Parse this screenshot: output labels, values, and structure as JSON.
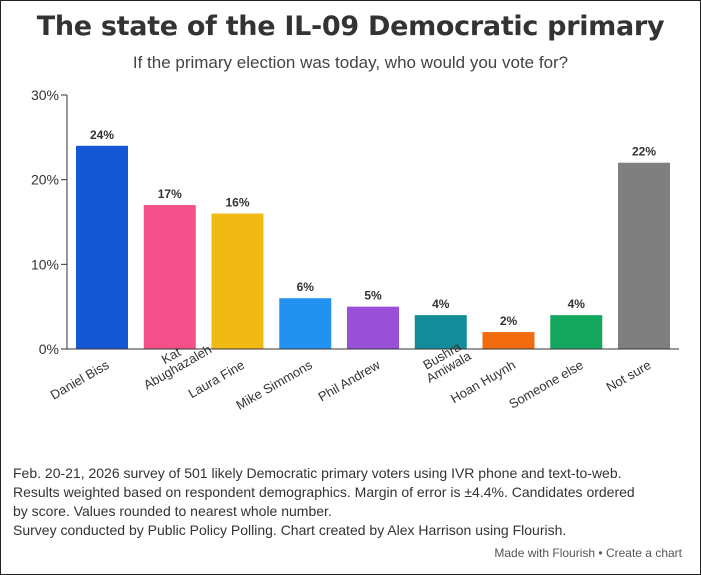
{
  "title": "The state of the IL-09 Democratic primary",
  "subtitle": "If the primary election was today, who would you vote for?",
  "chart_data": {
    "type": "bar",
    "categories": [
      "Daniel Biss",
      "Kat Abughazaleh",
      "Laura Fine",
      "Mike Simmons",
      "Phil Andrew",
      "Bushra Amiwala",
      "Hoan Huynh",
      "Someone else",
      "Not sure"
    ],
    "category_label_lines": [
      [
        "Daniel Biss"
      ],
      [
        "Kat",
        "Abughazaleh"
      ],
      [
        "Laura Fine"
      ],
      [
        "Mike Simmons"
      ],
      [
        "Phil Andrew"
      ],
      [
        "Bushra",
        "Amiwala"
      ],
      [
        "Hoan Huynh"
      ],
      [
        "Someone else"
      ],
      [
        "Not sure"
      ]
    ],
    "values": [
      24,
      17,
      16,
      6,
      5,
      4,
      2,
      4,
      22
    ],
    "value_labels": [
      "24%",
      "17%",
      "16%",
      "6%",
      "5%",
      "4%",
      "2%",
      "4%",
      "22%"
    ],
    "colors": [
      "#1558d6",
      "#f4508a",
      "#f0b914",
      "#2391f0",
      "#9a4fd9",
      "#128c99",
      "#f26b0f",
      "#14a85f",
      "#7f7f7f"
    ],
    "ylim": [
      0,
      30
    ],
    "yticks": [
      0,
      10,
      20,
      30
    ],
    "ytick_labels": [
      "0%",
      "10%",
      "20%",
      "30%"
    ],
    "xlabel": "",
    "ylabel": "",
    "grid": false,
    "legend": "none"
  },
  "footnote": {
    "lines": [
      "Feb. 20-21, 2026 survey of 501 likely Democratic primary voters using IVR phone and text-to-web.",
      "Results weighted based on respondent demographics. Margin of error is ±4.4%. Candidates ordered",
      "by score. Values rounded to nearest whole number.",
      "Survey conducted by Public Policy Polling. Chart created by Alex Harrison using Flourish."
    ]
  },
  "credit": {
    "made_with": "Made with Flourish",
    "separator": " • ",
    "create": "Create a chart"
  }
}
